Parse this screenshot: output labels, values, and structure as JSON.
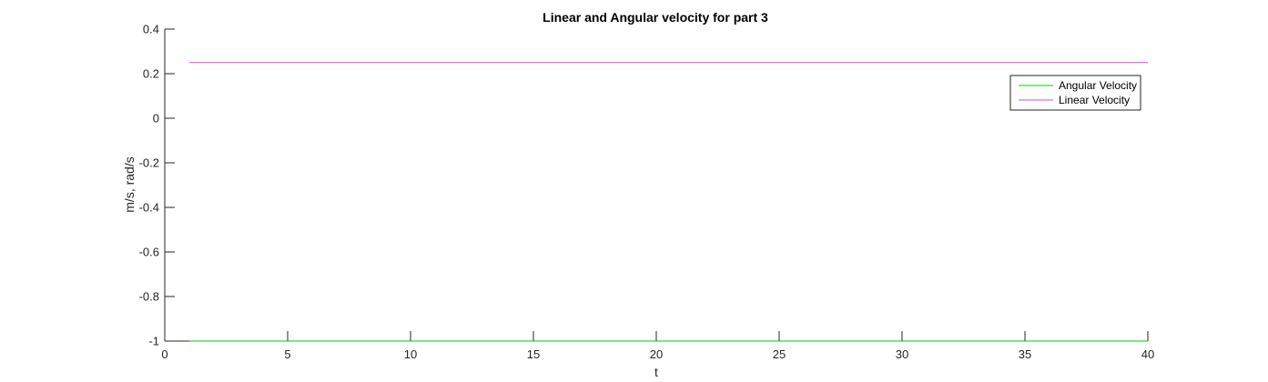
{
  "chart_data": {
    "type": "line",
    "title": "Linear and Angular velocity for part 3",
    "xlabel": "t",
    "ylabel": "m/s, rad/s",
    "xlim": [
      0,
      40
    ],
    "ylim": [
      -1,
      0.4
    ],
    "x_ticks": [
      0,
      5,
      10,
      15,
      20,
      25,
      30,
      35,
      40
    ],
    "x_tick_labels": [
      "0",
      "5",
      "10",
      "15",
      "20",
      "25",
      "30",
      "35",
      "40"
    ],
    "y_ticks": [
      0.4,
      0.2,
      0,
      -0.2,
      -0.4,
      -0.6,
      -0.8,
      -1
    ],
    "y_tick_labels": [
      "0.4",
      "0.2",
      "0",
      "-0.2",
      "-0.4",
      "-0.6",
      "-0.8",
      "-1"
    ],
    "grid": false,
    "legend_position": "top-right",
    "series": [
      {
        "name": "Angular Velocity",
        "color": "#00cc00",
        "x": [
          1,
          40
        ],
        "y": [
          -1,
          -1
        ]
      },
      {
        "name": "Linear Velocity",
        "color": "#e040e0",
        "x": [
          1,
          40
        ],
        "y": [
          0.25,
          0.25
        ]
      }
    ]
  }
}
